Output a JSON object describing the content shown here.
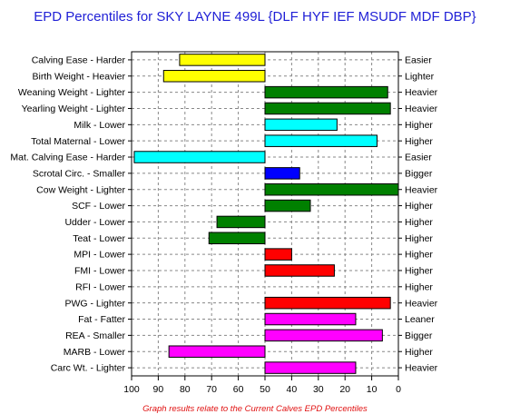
{
  "chart_data": {
    "type": "bar",
    "title": "EPD Percentiles for SKY LAYNE 499L {DLF HYF IEF MSUDF MDF DBP}",
    "footnote": "Graph results relate to the Current Calves EPD Percentiles",
    "xlim": [
      100,
      0
    ],
    "xticks": [
      100,
      90,
      80,
      70,
      60,
      50,
      40,
      30,
      20,
      10,
      0
    ],
    "grid": true,
    "baseline": 50,
    "colors": {
      "yellow": "#ffff00",
      "green": "#008000",
      "cyan": "#00ffff",
      "blue": "#0000ff",
      "red": "#ff0000",
      "magenta": "#ff00ff",
      "title": "#1f1fd6",
      "footnote": "#e01010"
    },
    "rows": [
      {
        "left_label": "Calving Ease - Harder",
        "right_label": "Easier",
        "value": 82,
        "color": "#ffff00"
      },
      {
        "left_label": "Birth Weight - Heavier",
        "right_label": "Lighter",
        "value": 88,
        "color": "#ffff00"
      },
      {
        "left_label": "Weaning Weight - Lighter",
        "right_label": "Heavier",
        "value": 4,
        "color": "#008000"
      },
      {
        "left_label": "Yearling Weight - Lighter",
        "right_label": "Heavier",
        "value": 3,
        "color": "#008000"
      },
      {
        "left_label": "Milk - Lower",
        "right_label": "Higher",
        "value": 23,
        "color": "#00ffff"
      },
      {
        "left_label": "Total Maternal - Lower",
        "right_label": "Higher",
        "value": 8,
        "color": "#00ffff"
      },
      {
        "left_label": "Mat. Calving Ease - Harder",
        "right_label": "Easier",
        "value": 99,
        "color": "#00ffff"
      },
      {
        "left_label": "Scrotal Circ. - Smaller",
        "right_label": "Bigger",
        "value": 37,
        "color": "#0000ff"
      },
      {
        "left_label": "Cow Weight - Lighter",
        "right_label": "Heavier",
        "value": 0,
        "color": "#008000"
      },
      {
        "left_label": "SCF - Lower",
        "right_label": "Higher",
        "value": 33,
        "color": "#008000"
      },
      {
        "left_label": "Udder - Lower",
        "right_label": "Higher",
        "value": 68,
        "color": "#008000"
      },
      {
        "left_label": "Teat - Lower",
        "right_label": "Higher",
        "value": 71,
        "color": "#008000"
      },
      {
        "left_label": "MPI - Lower",
        "right_label": "Higher",
        "value": 40,
        "color": "#ff0000"
      },
      {
        "left_label": "FMI - Lower",
        "right_label": "Higher",
        "value": 24,
        "color": "#ff0000"
      },
      {
        "left_label": "RFI - Lower",
        "right_label": "Higher",
        "value": null,
        "color": "#ff0000"
      },
      {
        "left_label": "PWG - Lighter",
        "right_label": "Heavier",
        "value": 3,
        "color": "#ff0000"
      },
      {
        "left_label": "Fat - Fatter",
        "right_label": "Leaner",
        "value": 16,
        "color": "#ff00ff"
      },
      {
        "left_label": "REA - Smaller",
        "right_label": "Bigger",
        "value": 6,
        "color": "#ff00ff"
      },
      {
        "left_label": "MARB - Lower",
        "right_label": "Higher",
        "value": 86,
        "color": "#ff00ff"
      },
      {
        "left_label": "Carc Wt. - Lighter",
        "right_label": "Heavier",
        "value": 16,
        "color": "#ff00ff"
      }
    ]
  }
}
